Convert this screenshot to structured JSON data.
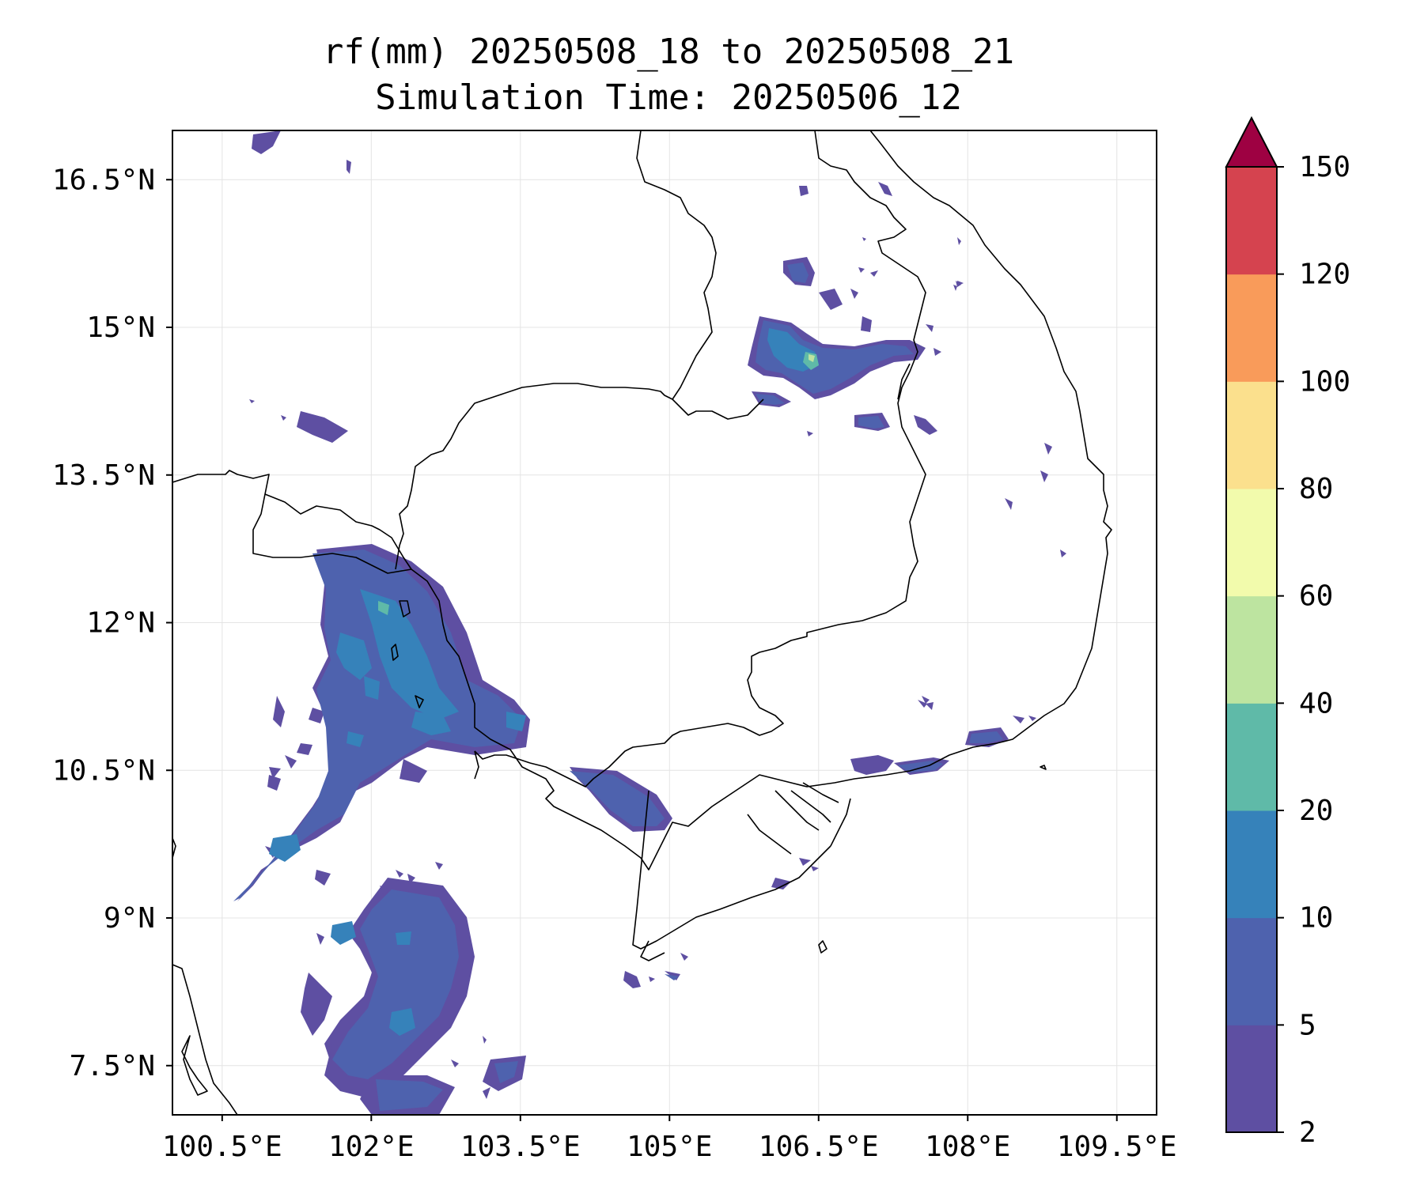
{
  "title": "rf(mm) 20250508_18 to 20250508_21",
  "subtitle": "Simulation Time: 20250506_12",
  "map": {
    "lon_ticks": [
      "100.5°E",
      "102°E",
      "103.5°E",
      "105°E",
      "106.5°E",
      "108°E",
      "109.5°E"
    ],
    "lat_ticks": [
      "16.5°N",
      "15°N",
      "13.5°N",
      "12°N",
      "10.5°N",
      "9°N",
      "7.5°N"
    ],
    "lon_values": [
      100.5,
      102,
      103.5,
      105,
      106.5,
      108,
      109.5
    ],
    "lat_values": [
      16.5,
      15,
      13.5,
      12,
      10.5,
      9,
      7.5
    ],
    "lon_range": [
      100.0,
      109.9
    ],
    "lat_range": [
      7.0,
      17.0
    ],
    "gridlines": true
  },
  "colorbar": {
    "levels": [
      "2",
      "5",
      "10",
      "20",
      "40",
      "60",
      "80",
      "100",
      "120",
      "150"
    ],
    "colors": [
      "#5e4fa2",
      "#4e62ae",
      "#3682ba",
      "#5fbaa8",
      "#bde4a0",
      "#f2fbac",
      "#fbe08d",
      "#f99b5a",
      "#d5434f",
      "#9e0142"
    ],
    "extend": "max"
  }
}
